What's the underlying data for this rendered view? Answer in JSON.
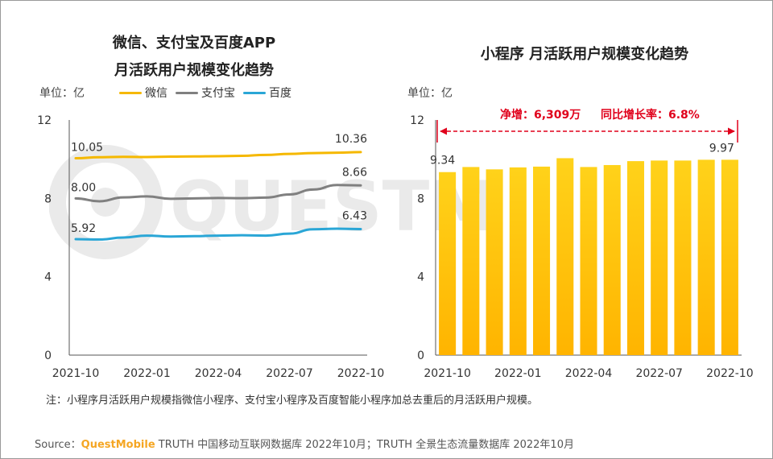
{
  "left_chart": {
    "title_line1": "微信、支付宝及百度APP",
    "title_line2": "月活跃用户规模变化趋势",
    "unit": "单位：亿"
  },
  "right_chart": {
    "title": "小程序 月活跃用户规模变化趋势",
    "unit": "单位：亿",
    "annotation_net": "净增：6,309万",
    "annotation_yoy": "同比增长率：6.8%"
  },
  "note": "注：小程序月活跃用户规模指微信小程序、支付宝小程序及百度智能小程序加总去重后的月活跃用户规模。",
  "source": {
    "prefix": "Source：",
    "brand": "QuestMobile",
    "text": " TRUTH 中国移动互联网数据库 2022年10月；TRUTH 全景生态流量数据库 2022年10月"
  },
  "watermark": "QUESTMOBILE",
  "colors": {
    "wechat": "#f5b800",
    "alipay": "#808080",
    "baidu": "#2aa6d6",
    "bar_top": "#ffd21a",
    "bar_bottom": "#ffb400",
    "annotation": "#e0001b"
  },
  "chart_data": [
    {
      "type": "line",
      "title": "微信、支付宝及百度APP 月活跃用户规模变化趋势",
      "ylabel": "单位：亿",
      "ylim": [
        0,
        12
      ],
      "yticks": [
        "0",
        "4",
        "8",
        "12"
      ],
      "x": [
        "2021-10",
        "2021-11",
        "2021-12",
        "2022-01",
        "2022-02",
        "2022-03",
        "2022-04",
        "2022-05",
        "2022-06",
        "2022-07",
        "2022-08",
        "2022-09",
        "2022-10"
      ],
      "xtick_labels": [
        "2021-10",
        "2022-01",
        "2022-04",
        "2022-07",
        "2022-10"
      ],
      "series": [
        {
          "name": "微信",
          "key": "wechat",
          "values": [
            10.05,
            10.1,
            10.12,
            10.11,
            10.13,
            10.14,
            10.15,
            10.17,
            10.22,
            10.27,
            10.31,
            10.33,
            10.36
          ],
          "first_label": "10.05",
          "last_label": "10.36"
        },
        {
          "name": "支付宝",
          "key": "alipay",
          "values": [
            8.0,
            7.85,
            8.05,
            8.1,
            7.98,
            8.0,
            8.02,
            8.01,
            8.04,
            8.2,
            8.45,
            8.68,
            8.66
          ],
          "first_label": "8.00",
          "last_label": "8.66"
        },
        {
          "name": "百度",
          "key": "baidu",
          "values": [
            5.92,
            5.9,
            6.0,
            6.1,
            6.05,
            6.07,
            6.1,
            6.12,
            6.1,
            6.2,
            6.42,
            6.45,
            6.43
          ],
          "first_label": "5.92",
          "last_label": "6.43"
        }
      ]
    },
    {
      "type": "bar",
      "title": "小程序 月活跃用户规模变化趋势",
      "ylabel": "单位：亿",
      "ylim": [
        0,
        12
      ],
      "yticks": [
        "0",
        "4",
        "8",
        "12"
      ],
      "categories": [
        "2021-10",
        "2021-11",
        "2021-12",
        "2022-01",
        "2022-02",
        "2022-03",
        "2022-04",
        "2022-05",
        "2022-06",
        "2022-07",
        "2022-08",
        "2022-09",
        "2022-10"
      ],
      "xtick_labels": [
        "2021-10",
        "2022-01",
        "2022-04",
        "2022-07",
        "2022-10"
      ],
      "values": [
        9.34,
        9.6,
        9.48,
        9.58,
        9.62,
        10.05,
        9.6,
        9.7,
        9.9,
        9.93,
        9.93,
        9.97,
        9.97
      ],
      "first_label": "9.34",
      "last_label": "9.97"
    }
  ]
}
